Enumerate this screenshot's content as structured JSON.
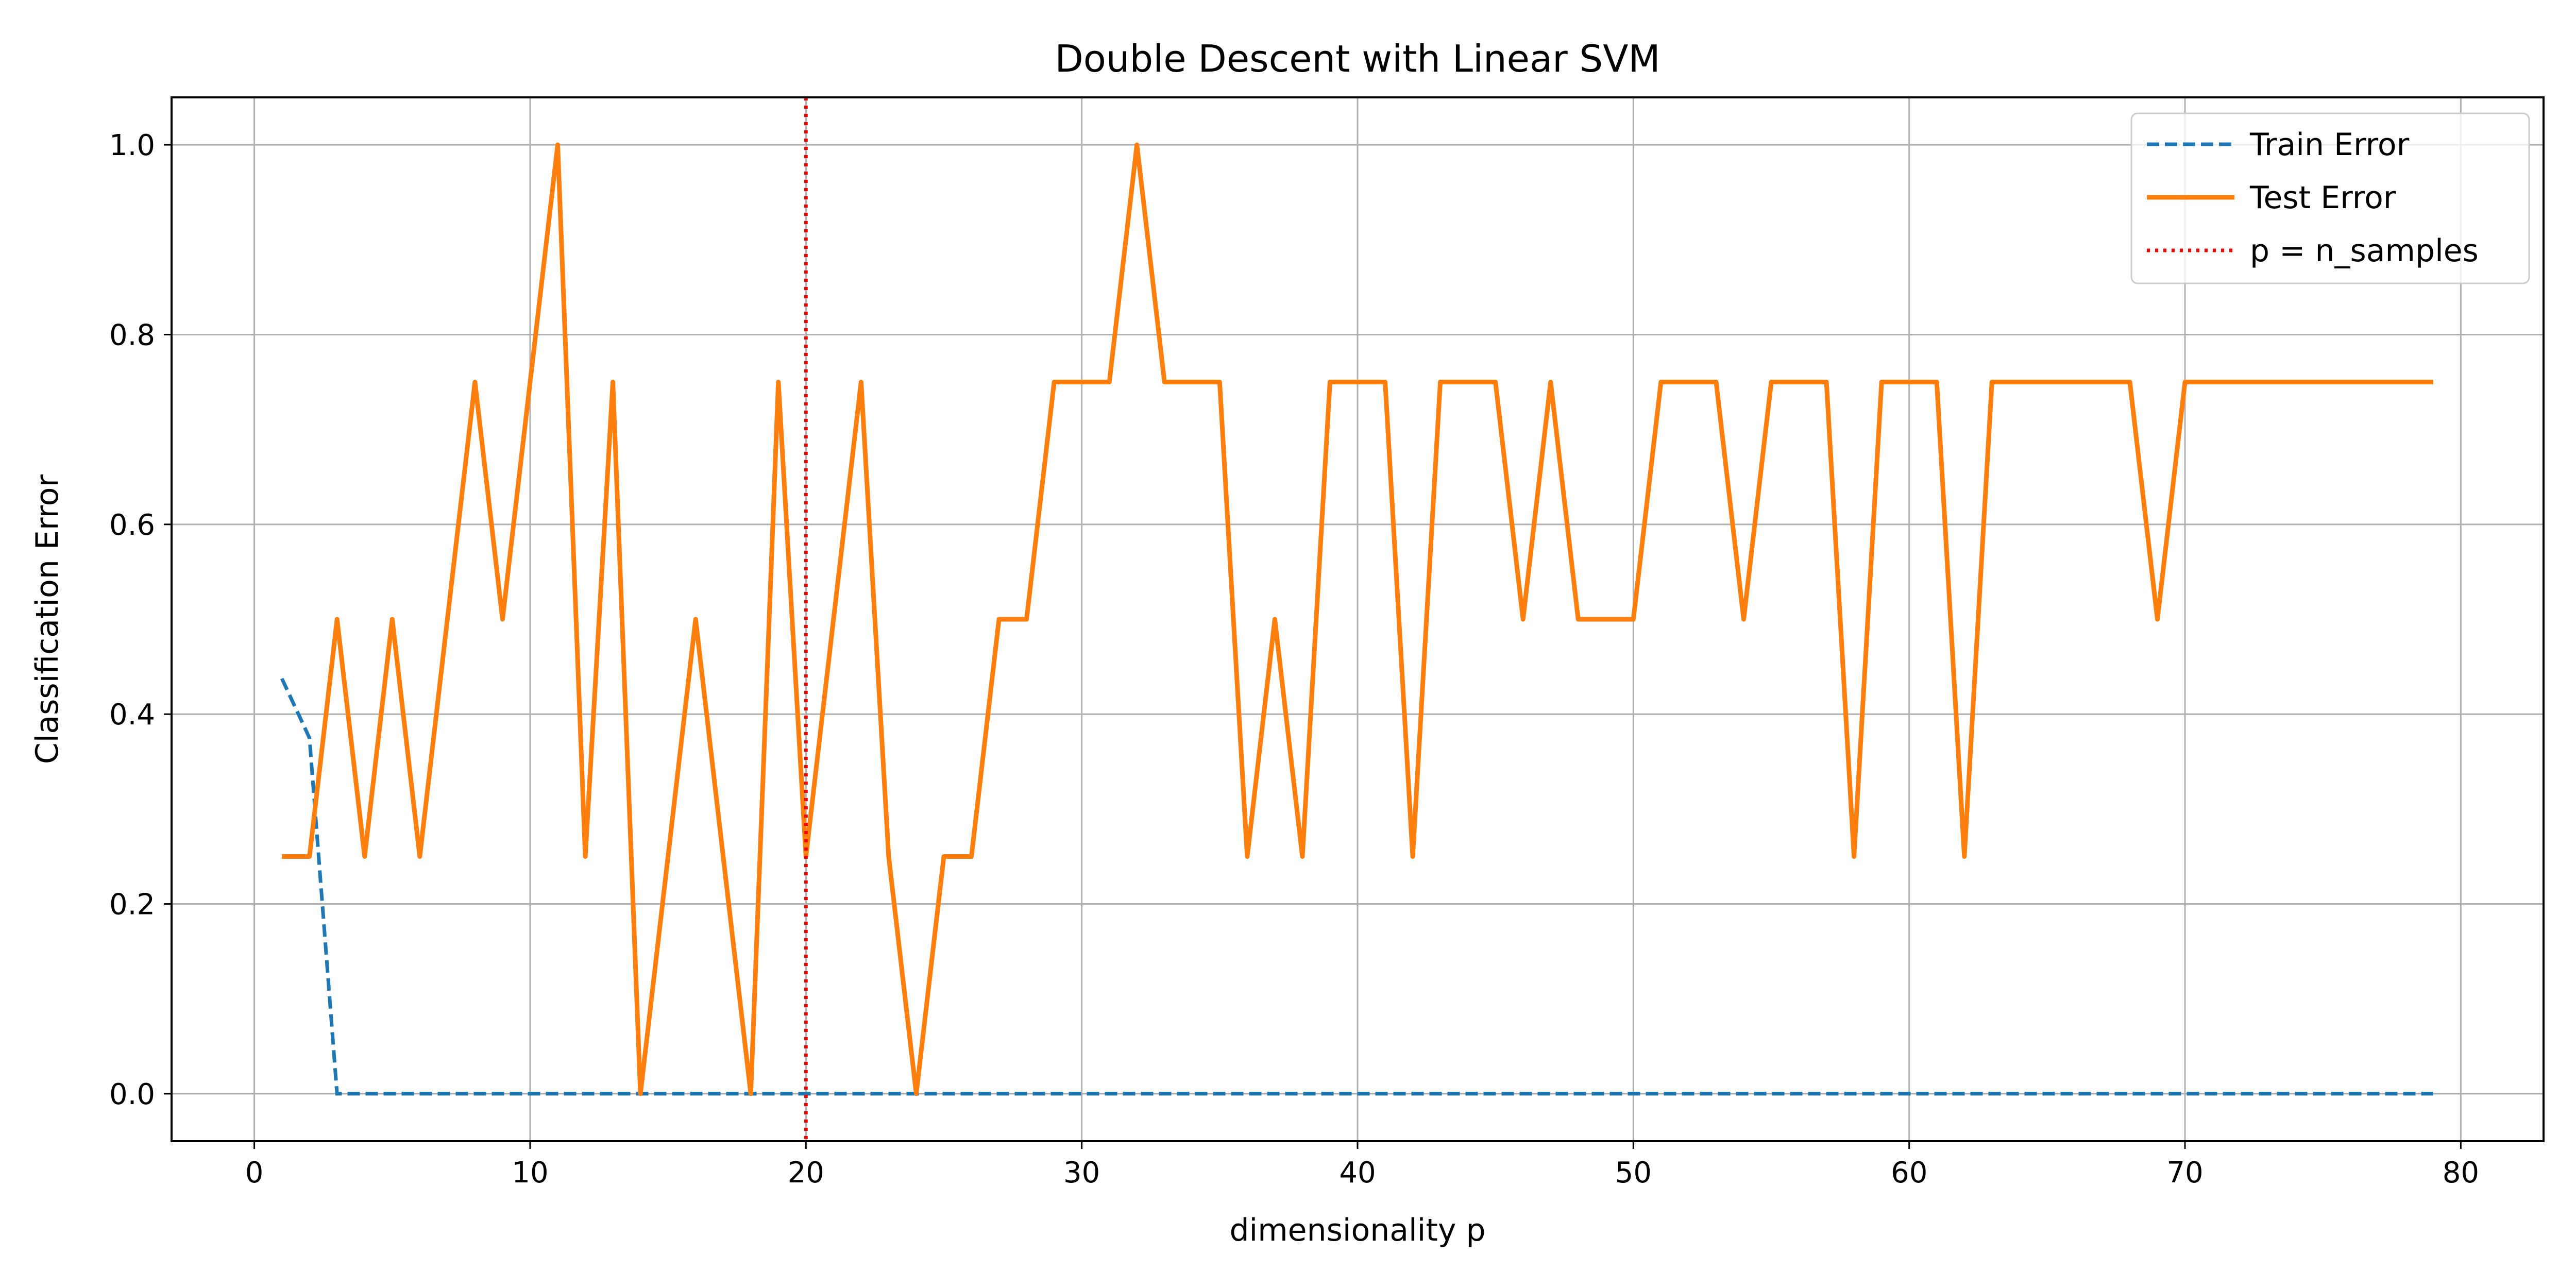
{
  "chart_data": {
    "type": "line",
    "title": "Double Descent with Linear SVM",
    "xlabel": "dimensionality p",
    "ylabel": "Classification Error",
    "xlim": [
      -3,
      83
    ],
    "ylim": [
      -0.05,
      1.05
    ],
    "x_ticks": [
      0,
      10,
      20,
      30,
      40,
      50,
      60,
      70,
      80
    ],
    "x_tick_labels": [
      "0",
      "10",
      "20",
      "30",
      "40",
      "50",
      "60",
      "70",
      "80"
    ],
    "y_ticks": [
      0.0,
      0.2,
      0.4,
      0.6,
      0.8,
      1.0
    ],
    "y_tick_labels": [
      "0.0",
      "0.2",
      "0.4",
      "0.6",
      "0.8",
      "1.0"
    ],
    "grid": true,
    "legend_position": "top-right",
    "x": [
      1,
      2,
      3,
      4,
      5,
      6,
      7,
      8,
      9,
      10,
      11,
      12,
      13,
      14,
      15,
      16,
      17,
      18,
      19,
      20,
      21,
      22,
      23,
      24,
      25,
      26,
      27,
      28,
      29,
      30,
      31,
      32,
      33,
      34,
      35,
      36,
      37,
      38,
      39,
      40,
      41,
      42,
      43,
      44,
      45,
      46,
      47,
      48,
      49,
      50,
      51,
      52,
      53,
      54,
      55,
      56,
      57,
      58,
      59,
      60,
      61,
      62,
      63,
      64,
      65,
      66,
      67,
      68,
      69,
      70,
      71,
      72,
      73,
      74,
      75,
      76,
      77,
      78,
      79
    ],
    "series": [
      {
        "name": "Train Error",
        "color": "#1f77b4",
        "style": "dashed",
        "values": [
          0.4375,
          0.375,
          0,
          0,
          0,
          0,
          0,
          0,
          0,
          0,
          0,
          0,
          0,
          0,
          0,
          0,
          0,
          0,
          0,
          0,
          0,
          0,
          0,
          0,
          0,
          0,
          0,
          0,
          0,
          0,
          0,
          0,
          0,
          0,
          0,
          0,
          0,
          0,
          0,
          0,
          0,
          0,
          0,
          0,
          0,
          0,
          0,
          0,
          0,
          0,
          0,
          0,
          0,
          0,
          0,
          0,
          0,
          0,
          0,
          0,
          0,
          0,
          0,
          0,
          0,
          0,
          0,
          0,
          0,
          0,
          0,
          0,
          0,
          0,
          0,
          0,
          0,
          0,
          0
        ]
      },
      {
        "name": "Test Error",
        "color": "#ff7f0e",
        "style": "solid",
        "values": [
          0.25,
          0.25,
          0.5,
          0.25,
          0.5,
          0.25,
          0.5,
          0.75,
          0.5,
          0.75,
          1.0,
          0.25,
          0.75,
          0.0,
          0.25,
          0.5,
          0.25,
          0.0,
          0.75,
          0.25,
          0.5,
          0.75,
          0.25,
          0.0,
          0.25,
          0.25,
          0.5,
          0.5,
          0.75,
          0.75,
          0.75,
          1.0,
          0.75,
          0.75,
          0.75,
          0.25,
          0.5,
          0.25,
          0.75,
          0.75,
          0.75,
          0.25,
          0.75,
          0.75,
          0.75,
          0.5,
          0.75,
          0.5,
          0.5,
          0.5,
          0.75,
          0.75,
          0.75,
          0.5,
          0.75,
          0.75,
          0.75,
          0.25,
          0.75,
          0.75,
          0.75,
          0.25,
          0.75,
          0.75,
          0.75,
          0.75,
          0.75,
          0.75,
          0.5,
          0.75,
          0.75,
          0.75,
          0.75,
          0.75,
          0.75,
          0.75,
          0.75,
          0.75,
          0.75
        ]
      }
    ],
    "vline": {
      "name": "p = n_samples",
      "x": 20,
      "color": "#ff0000",
      "style": "dotted"
    }
  }
}
